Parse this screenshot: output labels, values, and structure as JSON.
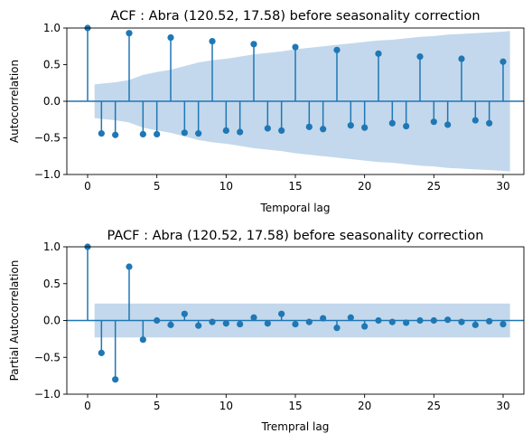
{
  "chart_data": [
    {
      "type": "stem",
      "title": "ACF : Abra (120.52, 17.58) before seasonality correction",
      "xlabel": "Temporal lag",
      "ylabel": "Autocorrelation",
      "xlim": [
        -1.5,
        31.5
      ],
      "ylim": [
        -1.0,
        1.0
      ],
      "xticks": [
        0,
        5,
        10,
        15,
        20,
        25,
        30
      ],
      "yticks": [
        -1.0,
        -0.5,
        0.0,
        0.5,
        1.0
      ],
      "x": [
        0,
        1,
        2,
        3,
        4,
        5,
        6,
        7,
        8,
        9,
        10,
        11,
        12,
        13,
        14,
        15,
        16,
        17,
        18,
        19,
        20,
        21,
        22,
        23,
        24,
        25,
        26,
        27,
        28,
        29,
        30
      ],
      "values": [
        1.0,
        -0.44,
        -0.46,
        0.93,
        -0.45,
        -0.45,
        0.87,
        -0.43,
        -0.44,
        0.82,
        -0.4,
        -0.42,
        0.78,
        -0.37,
        -0.4,
        0.74,
        -0.35,
        -0.38,
        0.7,
        -0.33,
        -0.36,
        0.65,
        -0.3,
        -0.34,
        0.61,
        -0.28,
        -0.32,
        0.58,
        -0.26,
        -0.3,
        0.54
      ],
      "confidence_band": {
        "x": [
          0.5,
          1,
          2,
          3,
          4,
          5,
          6,
          7,
          8,
          9,
          10,
          11,
          12,
          13,
          14,
          15,
          16,
          17,
          18,
          19,
          20,
          21,
          22,
          23,
          24,
          25,
          26,
          27,
          28,
          29,
          30,
          30.5
        ],
        "upper": [
          0.23,
          0.24,
          0.26,
          0.29,
          0.36,
          0.4,
          0.43,
          0.48,
          0.53,
          0.56,
          0.58,
          0.61,
          0.64,
          0.66,
          0.68,
          0.71,
          0.73,
          0.75,
          0.77,
          0.79,
          0.81,
          0.83,
          0.84,
          0.86,
          0.88,
          0.89,
          0.91,
          0.92,
          0.93,
          0.94,
          0.95,
          0.96
        ]
      },
      "colors": {
        "stem": "#1f77b4",
        "band": "#c3d8ec",
        "zero": "#1f77b4"
      }
    },
    {
      "type": "stem",
      "title": "PACF : Abra (120.52, 17.58) before seasonality correction",
      "xlabel": "Trempral lag",
      "ylabel": "Partial Autocorrelation",
      "xlim": [
        -1.5,
        31.5
      ],
      "ylim": [
        -1.0,
        1.0
      ],
      "xticks": [
        0,
        5,
        10,
        15,
        20,
        25,
        30
      ],
      "yticks": [
        -1.0,
        -0.5,
        0.0,
        0.5,
        1.0
      ],
      "x": [
        0,
        1,
        2,
        3,
        4,
        5,
        6,
        7,
        8,
        9,
        10,
        11,
        12,
        13,
        14,
        15,
        16,
        17,
        18,
        19,
        20,
        21,
        22,
        23,
        24,
        25,
        26,
        27,
        28,
        29,
        30
      ],
      "values": [
        1.0,
        -0.44,
        -0.8,
        0.73,
        -0.26,
        0.0,
        -0.06,
        0.09,
        -0.07,
        -0.02,
        -0.04,
        -0.05,
        0.04,
        -0.04,
        0.09,
        -0.05,
        -0.02,
        0.03,
        -0.1,
        0.04,
        -0.08,
        0.0,
        -0.02,
        -0.03,
        0.0,
        0.0,
        0.01,
        -0.02,
        -0.06,
        -0.01,
        -0.05
      ],
      "confidence_band": {
        "x": [
          0.5,
          30.5
        ],
        "upper": [
          0.23,
          0.23
        ]
      },
      "colors": {
        "stem": "#1f77b4",
        "band": "#c3d8ec",
        "zero": "#1f77b4"
      }
    }
  ]
}
